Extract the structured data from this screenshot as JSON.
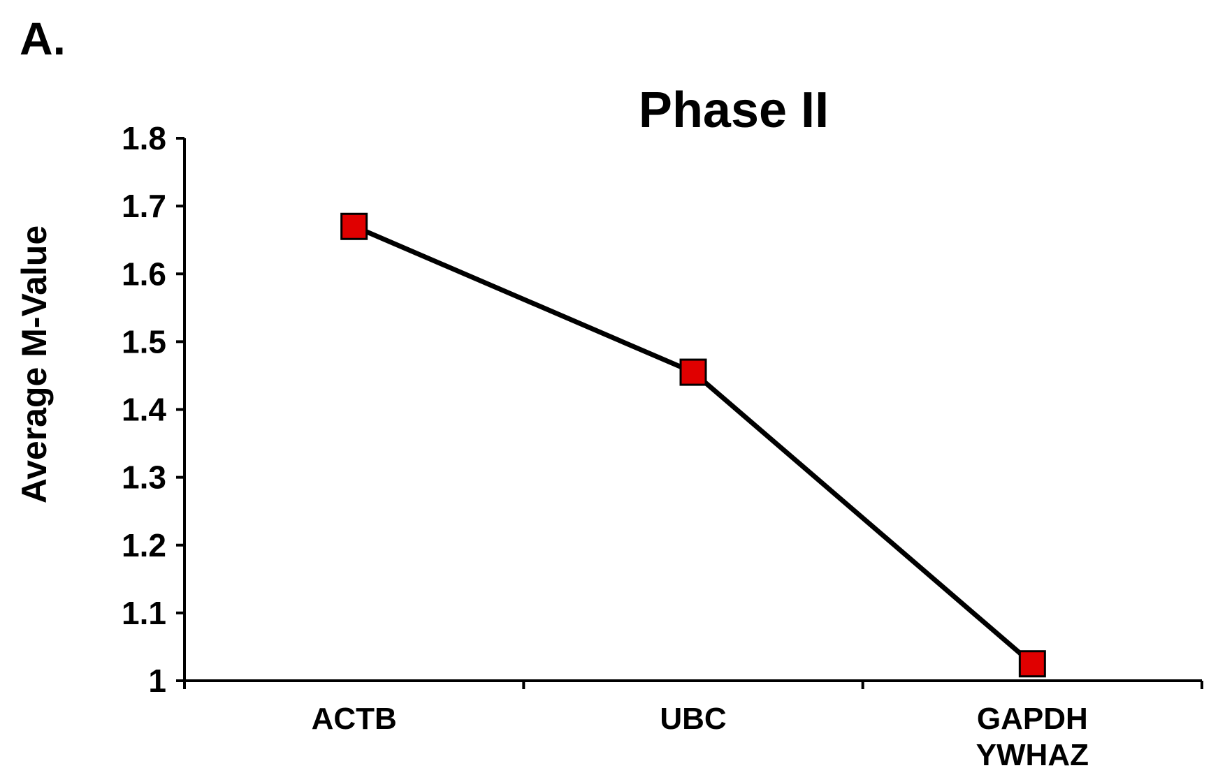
{
  "panel_label": "A.",
  "chart_data": {
    "type": "line",
    "title": "Phase II",
    "xlabel": "",
    "ylabel": "Average M-Value",
    "categories": [
      [
        "ACTB"
      ],
      [
        "UBC"
      ],
      [
        "GAPDH",
        "YWHAZ"
      ]
    ],
    "yticks": [
      "1",
      "1.1",
      "1.2",
      "1.3",
      "1.4",
      "1.5",
      "1.6",
      "1.7",
      "1.8"
    ],
    "ylim": [
      1,
      1.8
    ],
    "grid": false,
    "series": [
      {
        "values": [
          1.67,
          1.455,
          1.025
        ],
        "line_color": "#000000",
        "marker": "square",
        "marker_color": "#e00000"
      }
    ]
  }
}
